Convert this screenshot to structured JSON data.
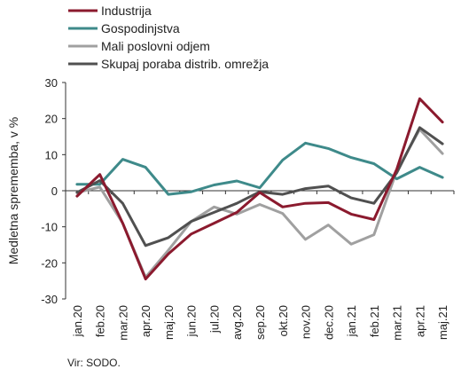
{
  "chart_data": {
    "type": "line",
    "title": "",
    "xlabel": "",
    "ylabel": "Medletna sprememba, v %",
    "ylim": [
      -30,
      30
    ],
    "yticks": [
      -30,
      -20,
      -10,
      0,
      10,
      20,
      30
    ],
    "grid": false,
    "legend_position": "top-left",
    "categories": [
      "jan.20",
      "feb.20",
      "mar.20",
      "apr.20",
      "maj.20",
      "jun.20",
      "jul.20",
      "avg.20",
      "sep.20",
      "okt.20",
      "nov.20",
      "dec.20",
      "jan.21",
      "feb.21",
      "mar.21",
      "apr.21",
      "maj.21"
    ],
    "series": [
      {
        "name": "Industrija",
        "color": "#8b1a2e",
        "values": [
          -1.5,
          4.5,
          -9.0,
          -24.5,
          -17.5,
          -12.0,
          -9.0,
          -6.0,
          -0.5,
          -4.5,
          -3.5,
          -3.3,
          -6.5,
          -8.0,
          6.0,
          25.5,
          19.0
        ]
      },
      {
        "name": "Gospodinjstva",
        "color": "#3e8a8a",
        "values": [
          1.8,
          1.8,
          8.7,
          6.5,
          -1.0,
          -0.3,
          1.6,
          2.7,
          0.8,
          8.5,
          13.2,
          11.7,
          9.2,
          7.5,
          3.3,
          6.5,
          3.7
        ]
      },
      {
        "name": "Mali poslovni odjem",
        "color": "#a0a0a0",
        "values": [
          -0.5,
          1.0,
          -9.0,
          -24.0,
          -16.5,
          -8.5,
          -4.5,
          -6.5,
          -3.8,
          -6.3,
          -13.5,
          -9.5,
          -14.8,
          -12.2,
          5.5,
          17.0,
          10.3
        ]
      },
      {
        "name": "Skupaj poraba distrib. omrežja",
        "color": "#505050",
        "values": [
          -0.5,
          2.8,
          -3.5,
          -15.2,
          -13.0,
          -8.5,
          -6.0,
          -3.5,
          -0.3,
          -1.0,
          0.6,
          1.3,
          -2.0,
          -3.5,
          5.0,
          17.5,
          13.0
        ]
      }
    ]
  },
  "source_note": "Vir: SODO."
}
